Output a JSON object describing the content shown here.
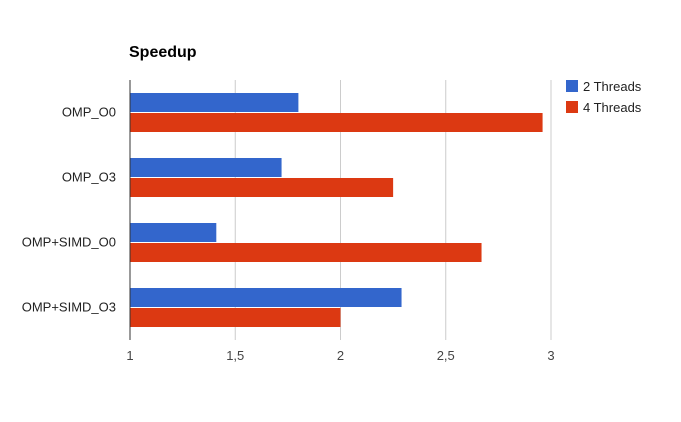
{
  "chart_data": {
    "type": "bar",
    "orientation": "horizontal",
    "title": "Speedup",
    "xlabel": "",
    "ylabel": "",
    "categories": [
      "OMP_O0",
      "OMP_O3",
      "OMP+SIMD_O0",
      "OMP+SIMD_O3"
    ],
    "series": [
      {
        "name": "2 Threads",
        "color": "#3366cc",
        "values": [
          1.8,
          1.72,
          1.41,
          2.29
        ]
      },
      {
        "name": "4 Threads",
        "color": "#dc3912",
        "values": [
          2.96,
          2.25,
          2.67,
          2.0
        ]
      }
    ],
    "xlim": [
      1,
      3
    ],
    "ticks": [
      1,
      1.5,
      2,
      2.5,
      3
    ],
    "tick_labels": [
      "1",
      "1,5",
      "2",
      "2,5",
      "3"
    ],
    "grid": true,
    "legend_position": "right"
  }
}
